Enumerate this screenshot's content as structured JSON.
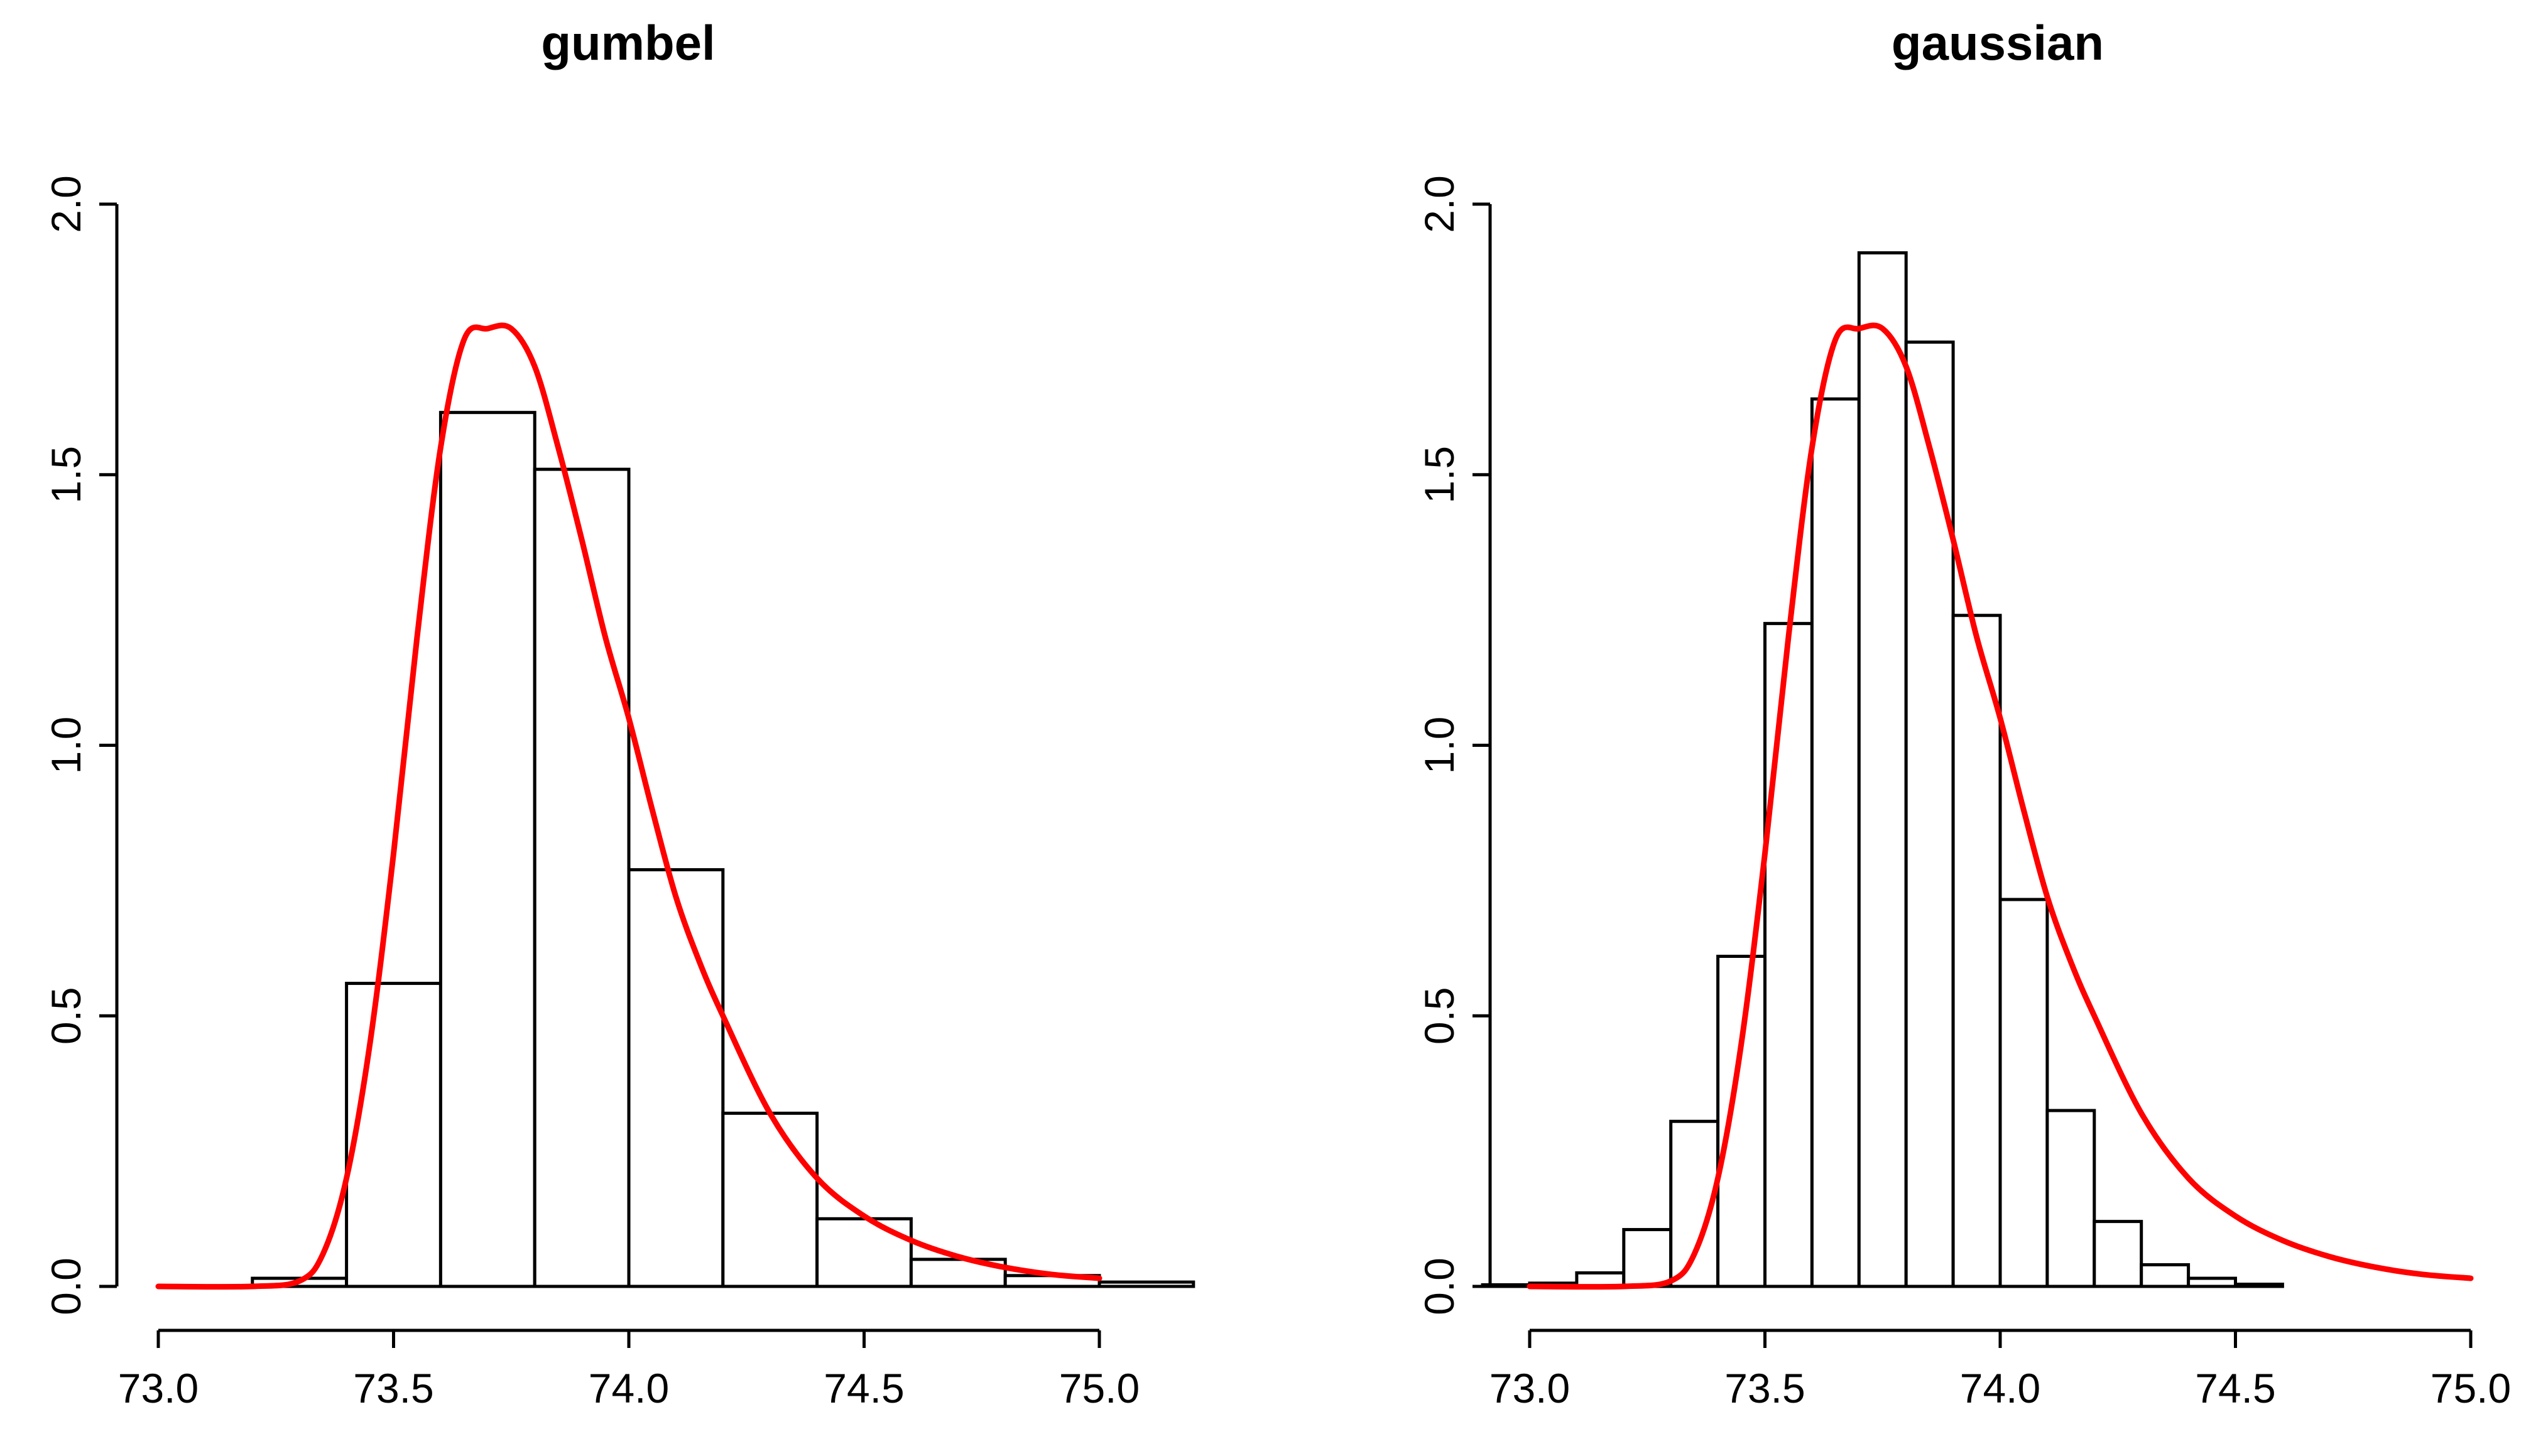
{
  "chart_data": [
    {
      "type": "histogram",
      "title": "gumbel",
      "xlabel": "",
      "ylabel": "",
      "xlim": [
        73.0,
        75.1
      ],
      "ylim": [
        0,
        2.0
      ],
      "x_ticks": [
        "73.0",
        "73.5",
        "74.0",
        "74.5",
        "75.0"
      ],
      "y_ticks": [
        "0.0",
        "0.5",
        "1.0",
        "1.5",
        "2.0"
      ],
      "grid": false,
      "bins": [
        {
          "x0": 73.2,
          "x1": 73.4,
          "density": 0.015
        },
        {
          "x0": 73.4,
          "x1": 73.6,
          "density": 0.56
        },
        {
          "x0": 73.6,
          "x1": 73.8,
          "density": 1.615
        },
        {
          "x0": 73.8,
          "x1": 74.0,
          "density": 1.51
        },
        {
          "x0": 74.0,
          "x1": 74.2,
          "density": 0.77
        },
        {
          "x0": 74.2,
          "x1": 74.4,
          "density": 0.32
        },
        {
          "x0": 74.4,
          "x1": 74.6,
          "density": 0.125
        },
        {
          "x0": 74.6,
          "x1": 74.8,
          "density": 0.05
        },
        {
          "x0": 74.8,
          "x1": 75.0,
          "density": 0.02
        },
        {
          "x0": 75.0,
          "x1": 75.2,
          "density": 0.008
        }
      ],
      "curve": {
        "color": "#ff0000",
        "x": [
          73.0,
          73.2,
          73.3,
          73.35,
          73.4,
          73.45,
          73.5,
          73.55,
          73.6,
          73.65,
          73.7,
          73.75,
          73.8,
          73.85,
          73.9,
          73.95,
          74.0,
          74.05,
          74.1,
          74.15,
          74.2,
          74.3,
          74.4,
          74.5,
          74.6,
          74.7,
          74.8,
          74.9,
          75.0
        ],
        "y": [
          0.0,
          0.0,
          0.01,
          0.06,
          0.2,
          0.45,
          0.8,
          1.2,
          1.55,
          1.75,
          1.77,
          1.77,
          1.7,
          1.55,
          1.38,
          1.2,
          1.05,
          0.88,
          0.72,
          0.6,
          0.5,
          0.32,
          0.2,
          0.13,
          0.085,
          0.055,
          0.035,
          0.022,
          0.015
        ]
      }
    },
    {
      "type": "histogram",
      "title": "gaussian",
      "xlabel": "",
      "ylabel": "",
      "xlim": [
        73.0,
        75.0
      ],
      "ylim": [
        0,
        2.0
      ],
      "x_ticks": [
        "73.0",
        "73.5",
        "74.0",
        "74.5",
        "75.0"
      ],
      "y_ticks": [
        "0.0",
        "0.5",
        "1.0",
        "1.5",
        "2.0"
      ],
      "grid": false,
      "bins": [
        {
          "x0": 72.9,
          "x1": 73.0,
          "density": 0.003
        },
        {
          "x0": 73.0,
          "x1": 73.1,
          "density": 0.006
        },
        {
          "x0": 73.1,
          "x1": 73.2,
          "density": 0.025
        },
        {
          "x0": 73.2,
          "x1": 73.3,
          "density": 0.105
        },
        {
          "x0": 73.3,
          "x1": 73.4,
          "density": 0.305
        },
        {
          "x0": 73.4,
          "x1": 73.5,
          "density": 0.61
        },
        {
          "x0": 73.5,
          "x1": 73.6,
          "density": 1.225
        },
        {
          "x0": 73.6,
          "x1": 73.7,
          "density": 1.64
        },
        {
          "x0": 73.7,
          "x1": 73.8,
          "density": 1.91
        },
        {
          "x0": 73.8,
          "x1": 73.9,
          "density": 1.745
        },
        {
          "x0": 73.9,
          "x1": 74.0,
          "density": 1.24
        },
        {
          "x0": 74.0,
          "x1": 74.1,
          "density": 0.715
        },
        {
          "x0": 74.1,
          "x1": 74.2,
          "density": 0.325
        },
        {
          "x0": 74.2,
          "x1": 74.3,
          "density": 0.12
        },
        {
          "x0": 74.3,
          "x1": 74.4,
          "density": 0.04
        },
        {
          "x0": 74.4,
          "x1": 74.5,
          "density": 0.015
        },
        {
          "x0": 74.5,
          "x1": 74.6,
          "density": 0.004
        }
      ],
      "curve": {
        "color": "#ff0000",
        "x": [
          73.0,
          73.2,
          73.3,
          73.35,
          73.4,
          73.45,
          73.5,
          73.55,
          73.6,
          73.65,
          73.7,
          73.75,
          73.8,
          73.85,
          73.9,
          73.95,
          74.0,
          74.05,
          74.1,
          74.15,
          74.2,
          74.3,
          74.4,
          74.5,
          74.6,
          74.7,
          74.8,
          74.9,
          75.0
        ],
        "y": [
          0.0,
          0.0,
          0.01,
          0.06,
          0.2,
          0.45,
          0.8,
          1.2,
          1.55,
          1.75,
          1.77,
          1.77,
          1.7,
          1.55,
          1.38,
          1.2,
          1.05,
          0.88,
          0.72,
          0.6,
          0.5,
          0.32,
          0.2,
          0.13,
          0.085,
          0.055,
          0.035,
          0.022,
          0.015
        ]
      }
    }
  ]
}
